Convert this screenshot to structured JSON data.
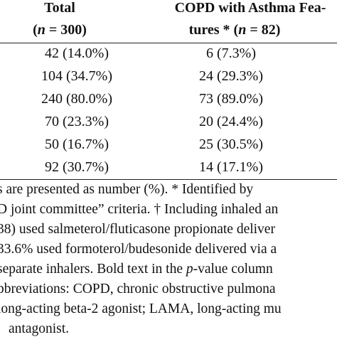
{
  "table": {
    "header": [
      {
        "line1": "Total",
        "line2": [
          "(",
          "n",
          " = 300)"
        ]
      },
      {
        "line1": "COPD with Asthma Fea-",
        "line2": [
          "tures * (",
          "n",
          " = 82)"
        ]
      }
    ],
    "rows": [
      [
        "42 (14.0%)",
        "6 (7.3%)"
      ],
      [
        "104 (34.7%)",
        "24 (29.3%)"
      ],
      [
        "240 (80.0%)",
        "73 (89.0%)"
      ],
      [
        "70 (23.3%)",
        "20 (24.4%)"
      ],
      [
        "50 (16.7%)",
        "25 (30.5%)"
      ],
      [
        "92 (30.7%)",
        "14 (17.1%)"
      ]
    ]
  },
  "footnote": [
    [
      "s are presented as number (%). * Identified by"
    ],
    [
      "D joint committee” criteria. † Including inhaled an"
    ],
    [
      "38) used salmeterol/fluticasone propionate deliver"
    ],
    [
      "33.6% used formoterol/budesonide delivered via a"
    ],
    [
      "separate inhalers. Bold text in the ",
      "p",
      "-value column"
    ],
    [
      "bbreviations: COPD, chronic obstructive pulmona"
    ],
    [
      "long-acting beta-2 agonist; LAMA, long-acting mu"
    ],
    [
      "antagonist."
    ]
  ]
}
